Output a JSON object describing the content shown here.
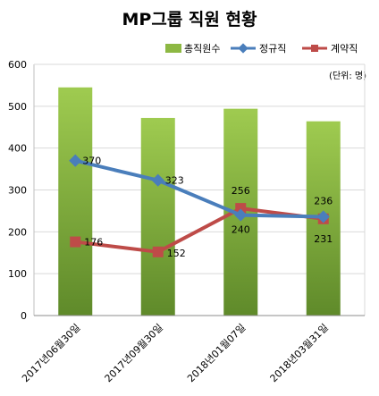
{
  "chart_data": {
    "type": "bar+line",
    "title": "MP그룹 직원 현황",
    "unit_note": "(단위: 명)",
    "categories": [
      "2017년06월30일",
      "2017년09월30일",
      "2018년01월07일",
      "2018년03월31일"
    ],
    "ylim": [
      0,
      600
    ],
    "yticks": [
      0,
      100,
      200,
      300,
      400,
      500,
      600
    ],
    "grid": true,
    "legend_position": "top-right",
    "series": [
      {
        "name": "총직원수",
        "kind": "bar",
        "color": "#8db843",
        "values": [
          545,
          472,
          494,
          464
        ]
      },
      {
        "name": "정규직",
        "kind": "line",
        "color": "#4a7ebb",
        "values": [
          370,
          323,
          240,
          236
        ]
      },
      {
        "name": "계약직",
        "kind": "line",
        "color": "#be4b48",
        "values": [
          176,
          152,
          256,
          231
        ]
      }
    ],
    "labels": {
      "regular": [
        "370",
        "323",
        "240",
        "236"
      ],
      "contract": [
        "176",
        "152",
        "256",
        "231"
      ]
    }
  }
}
